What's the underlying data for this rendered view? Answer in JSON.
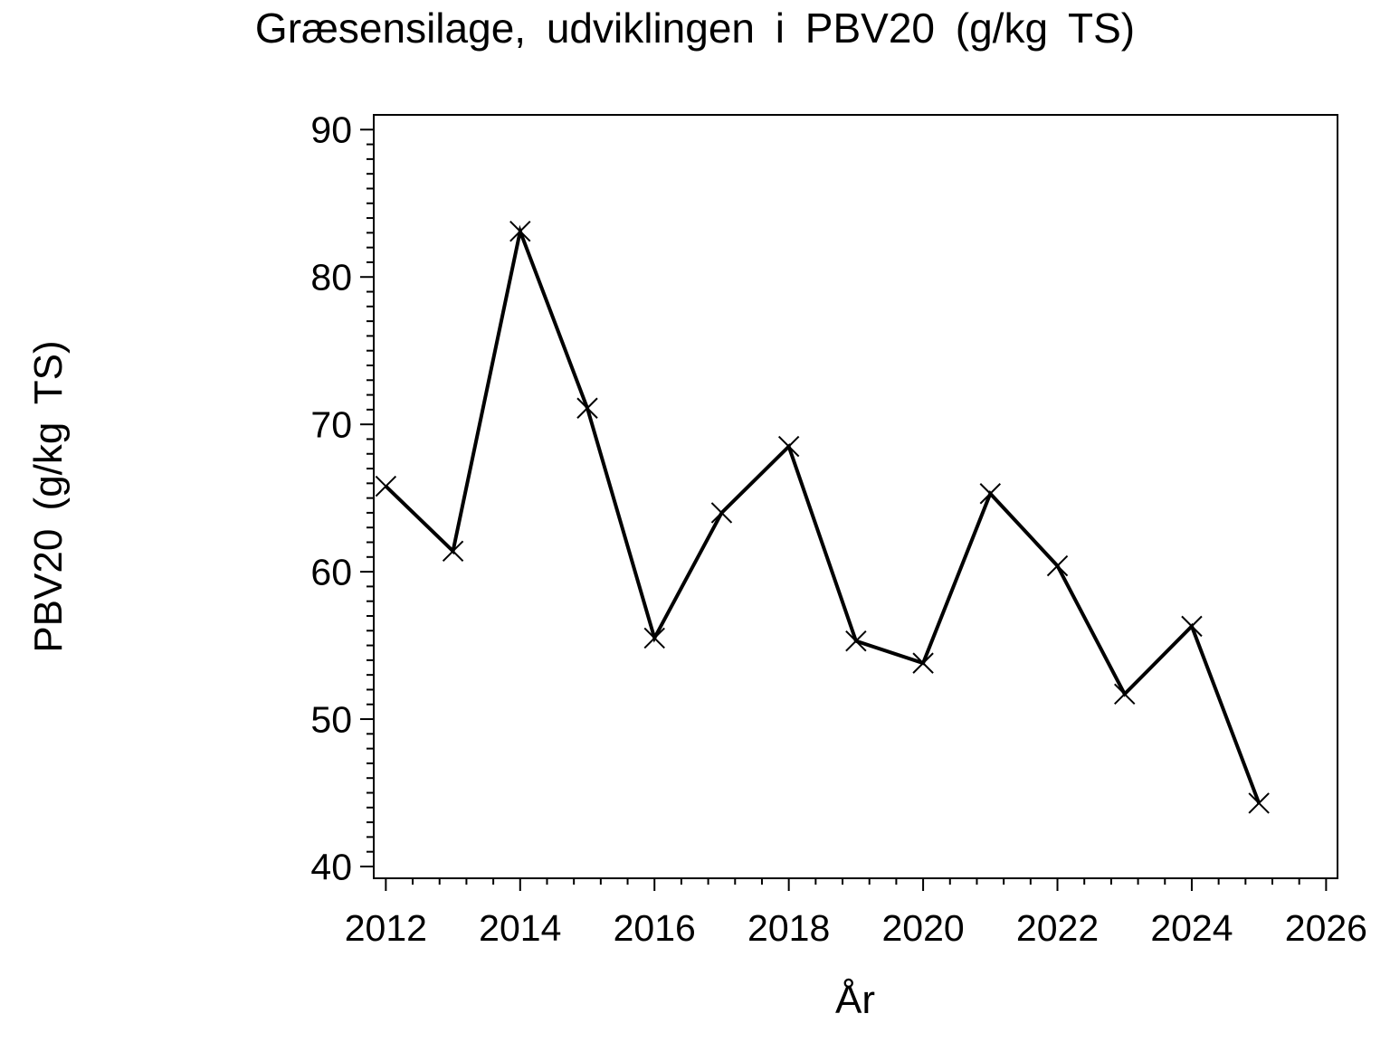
{
  "page": {
    "background": "#ffffff"
  },
  "chart_data": {
    "type": "line",
    "title": "Græsensilage, udviklingen i PBV20 (g/kg TS)",
    "xlabel": "År",
    "ylabel": "PBV20 (g/kg TS)",
    "x": [
      2012,
      2013,
      2014,
      2015,
      2016,
      2017,
      2018,
      2019,
      2020,
      2021,
      2022,
      2023,
      2024,
      2025
    ],
    "values": [
      65.8,
      61.4,
      83.1,
      71.1,
      55.5,
      64.0,
      68.5,
      55.3,
      53.8,
      65.3,
      60.4,
      51.7,
      56.3,
      44.3
    ],
    "x_ticks": [
      2012,
      2014,
      2016,
      2018,
      2020,
      2022,
      2024,
      2026
    ],
    "y_ticks": [
      40,
      50,
      60,
      70,
      80,
      90
    ],
    "x_minor_step": 0.4,
    "y_minor_step": 1,
    "x_range": [
      2011.82,
      2026.17
    ],
    "y_range": [
      39.2,
      91
    ],
    "marker": "x",
    "line_color": "#000000",
    "axis_color": "#000000",
    "grid": false,
    "legend": "none"
  }
}
